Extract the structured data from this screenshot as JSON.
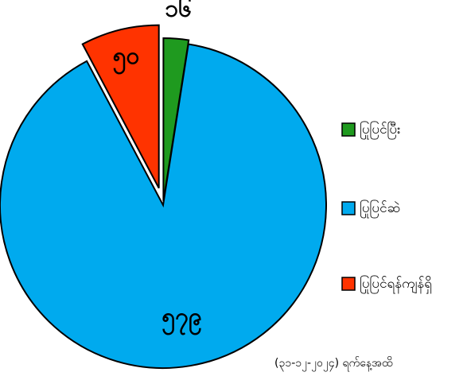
{
  "chart_data": {
    "type": "pie",
    "categories": [
      "ပြုပြင်ပြီး",
      "ပြုပြင်ဆဲ",
      "ပြုပြင်ရန်ကျန်ရှိ"
    ],
    "values": [
      16,
      579,
      50
    ],
    "value_labels": [
      "၁၆",
      "၅၇၉",
      "၅၀"
    ],
    "colors": [
      "#1f9a1f",
      "#00aaee",
      "#ff3300"
    ],
    "legend": "right",
    "note": "(၃၁-၁၂-၂၀၂၄) ရက်နေ့အထိ"
  }
}
